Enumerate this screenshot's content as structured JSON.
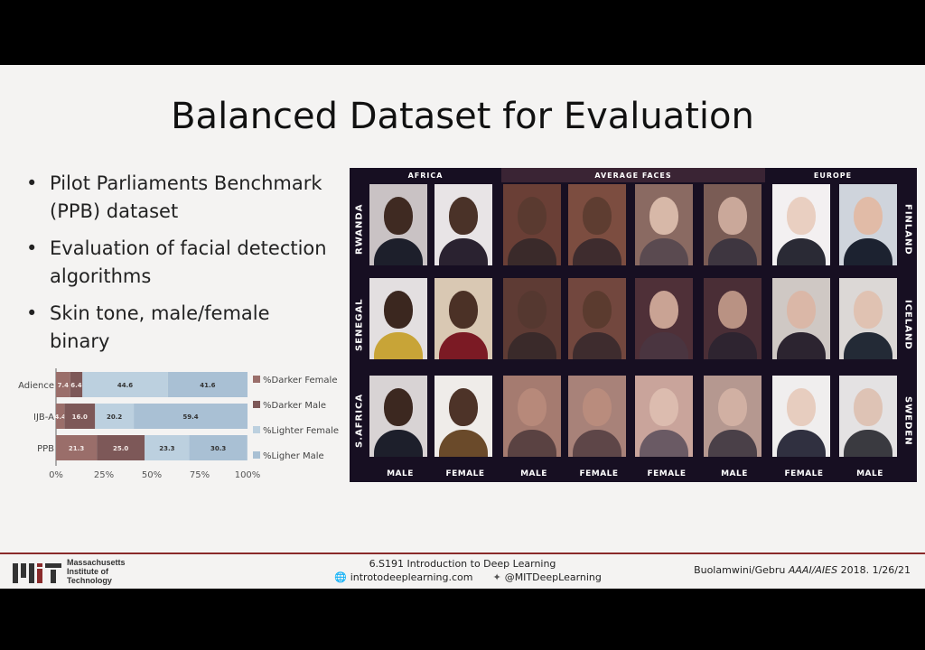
{
  "slide": {
    "title": "Balanced Dataset for Evaluation",
    "bullets": [
      "Pilot Parliaments Benchmark (PPB) dataset",
      "Evaluation of facial detection algorithms",
      "Skin tone, male/female binary"
    ]
  },
  "chart_data": {
    "type": "bar",
    "orientation": "horizontal-stacked",
    "categories": [
      "Adience",
      "IJB-A",
      "PPB"
    ],
    "series": [
      {
        "name": "%Darker Female",
        "values": [
          7.4,
          4.4,
          21.3
        ],
        "color": "#9a6e6a"
      },
      {
        "name": "%Darker Male",
        "values": [
          6.4,
          16.0,
          25.0
        ],
        "color": "#7d5858"
      },
      {
        "name": "%Lighter Female",
        "values": [
          44.6,
          20.2,
          23.3
        ],
        "color": "#bcd0df"
      },
      {
        "name": "%Ligher Male",
        "values": [
          41.6,
          59.4,
          30.3
        ],
        "color": "#a9c0d4"
      }
    ],
    "value_labels": [
      [
        "7.4",
        "6.4",
        "44.6",
        "41.6"
      ],
      [
        "4.4",
        "16.0",
        "20.2",
        "59.4"
      ],
      [
        "21.3",
        "25.0",
        "23.3",
        "30.3"
      ]
    ],
    "xticks": [
      "0%",
      "25%",
      "50%",
      "75%",
      "100%"
    ],
    "xlim": [
      0,
      100
    ],
    "legend": "right"
  },
  "faces_panel": {
    "headers": [
      "AFRICA",
      "AVERAGE FACES",
      "EUROPE"
    ],
    "left_labels": [
      "RWANDA",
      "SENEGAL",
      "S.AFRICA"
    ],
    "right_labels": [
      "FINLAND",
      "ICELAND",
      "SWEDEN"
    ],
    "column_labels": [
      "MALE",
      "FEMALE",
      "MALE",
      "FEMALE",
      "FEMALE",
      "MALE",
      "FEMALE",
      "MALE"
    ]
  },
  "footer": {
    "org_line1": "Massachusetts",
    "org_line2": "Institute of",
    "org_line3": "Technology",
    "course": "6.S191 Introduction to Deep Learning",
    "website": "introtodeeplearning.com",
    "twitter": "@MITDeepLearning",
    "citation_authors": "Buolamwini/Gebru ",
    "citation_venue": "AAAI/AIES",
    "citation_rest": " 2018.  1/26/21"
  }
}
